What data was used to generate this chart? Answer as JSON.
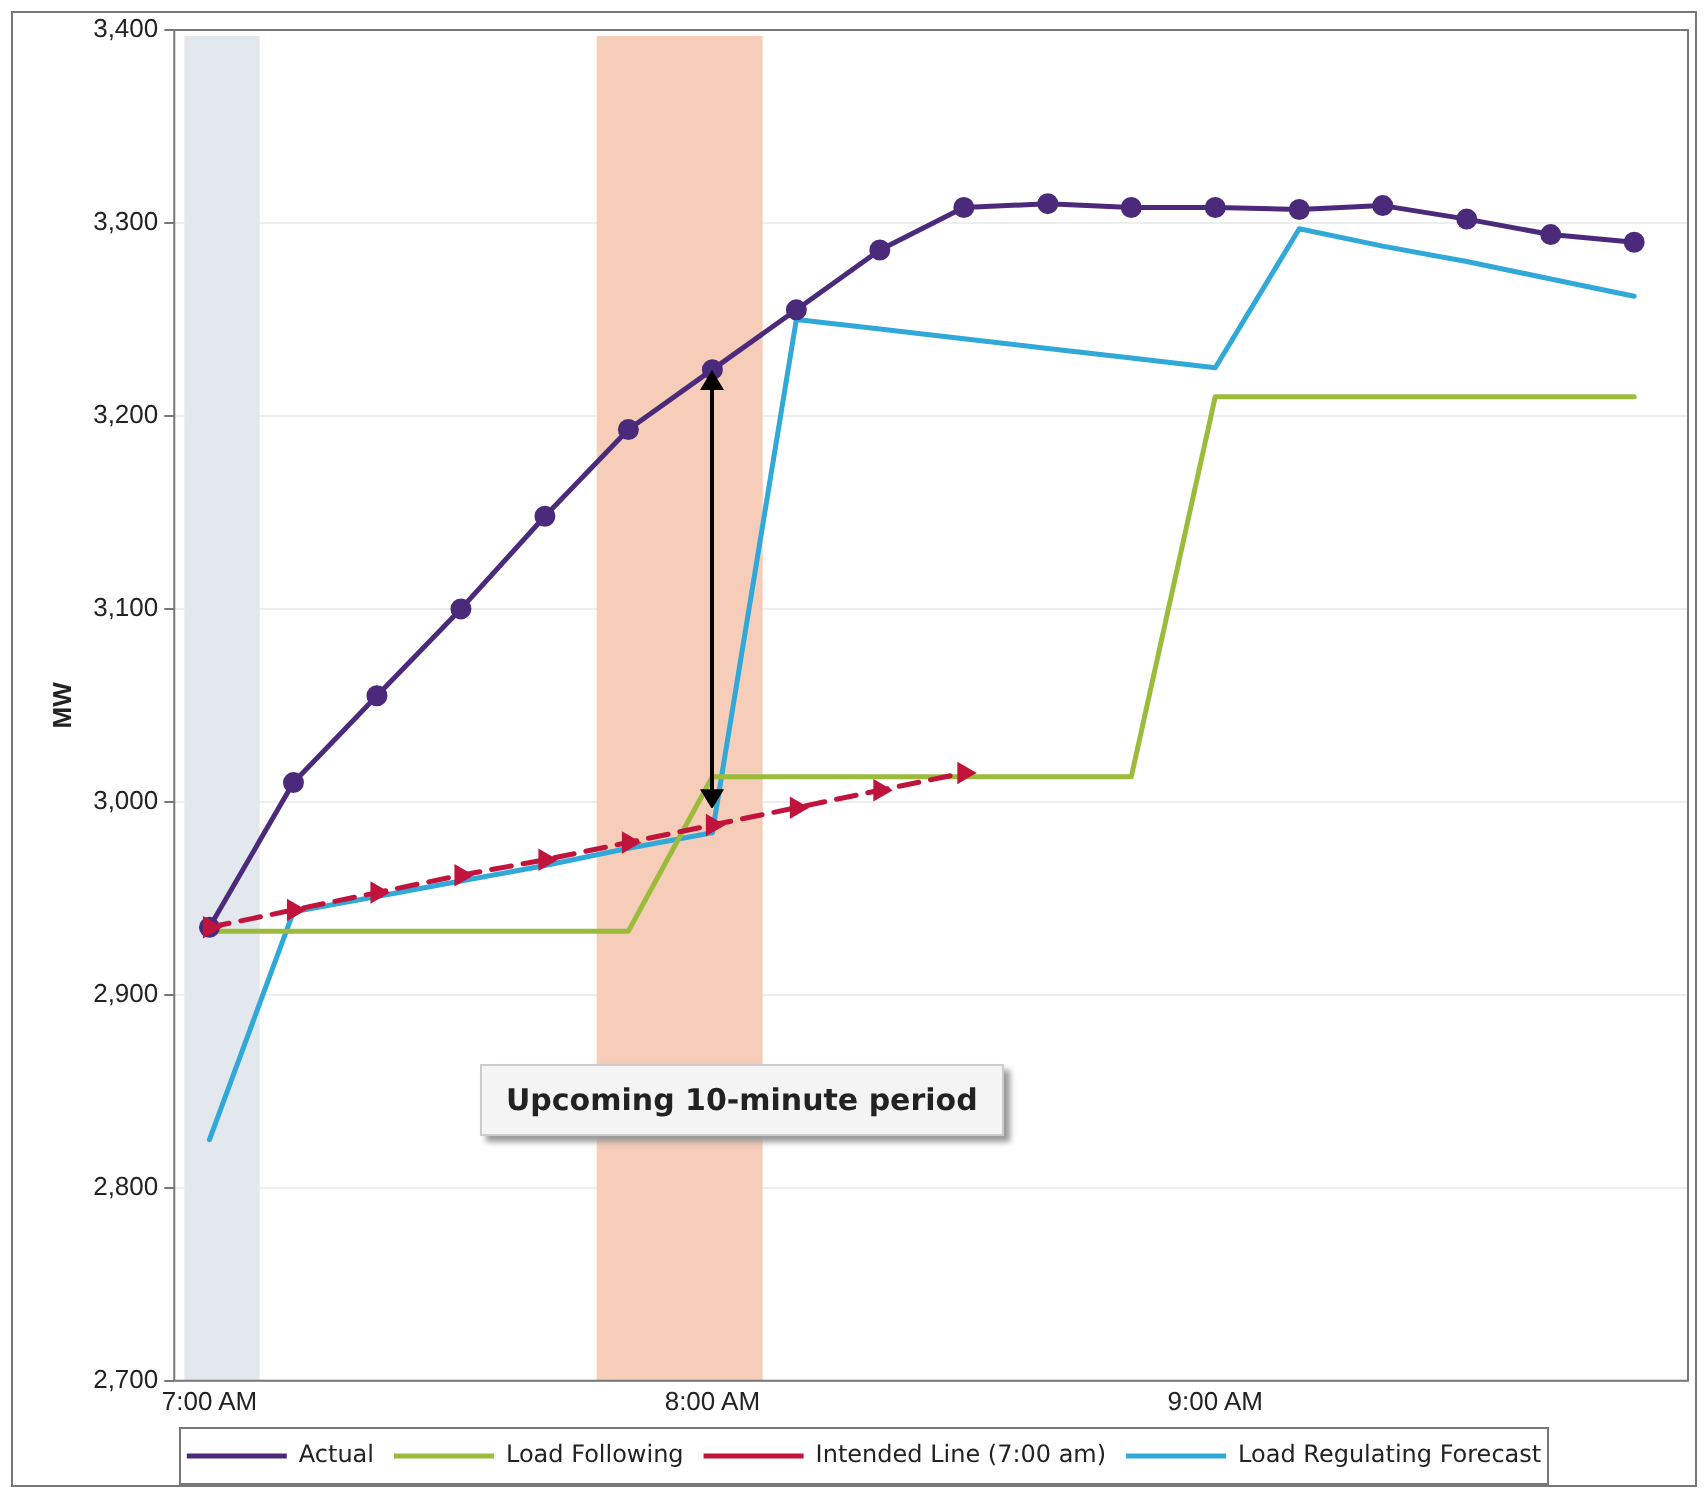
{
  "chart_data": {
    "type": "line",
    "ylabel": "MW",
    "x": [
      7,
      7.167,
      7.333,
      7.5,
      7.667,
      7.833,
      8,
      8.167,
      8.333,
      8.5,
      8.667,
      8.833,
      9,
      9.167,
      9.333,
      9.5,
      9.667,
      9.833
    ],
    "series": [
      {
        "name": "Actual",
        "color": "#4b2a7b",
        "marker": "circle",
        "line_style": "solid",
        "values": [
          2935,
          3010,
          3055,
          3100,
          3148,
          3193,
          3224,
          3255,
          3286,
          3308,
          3310,
          3308,
          3308,
          3307,
          3309,
          3302,
          3294,
          3290
        ]
      },
      {
        "name": "Load Following",
        "color": "#9bbb3b",
        "marker": "none",
        "line_style": "solid",
        "values": [
          2933,
          2933,
          2933,
          2933,
          2933,
          2933,
          3013,
          3013,
          3013,
          3013,
          3013,
          3013,
          3210,
          3210,
          3210,
          3210,
          3210,
          3210
        ]
      },
      {
        "name": "Intended Line (7:00 am)",
        "color": "#c0143c",
        "marker": "triangle",
        "line_style": "dashed",
        "values": [
          2935,
          2944,
          2953,
          2962,
          2970,
          2979,
          2988,
          2997,
          3006,
          3015,
          null,
          null,
          null,
          null,
          null,
          null,
          null,
          null
        ]
      },
      {
        "name": "Load Regulating Forecast",
        "color": "#30a8d8",
        "marker": "none",
        "line_style": "solid",
        "values": [
          2825,
          2943,
          2951,
          2959,
          2967,
          2976,
          2984,
          3250,
          3245,
          3240,
          3235,
          3230,
          3225,
          3297,
          3288,
          3280,
          3271,
          3262
        ]
      }
    ],
    "xlim": [
      6.93,
      9.94
    ],
    "xticks": [
      {
        "value": 7,
        "label": "7:00 AM"
      },
      {
        "value": 8,
        "label": "8:00 AM"
      },
      {
        "value": 9,
        "label": "9:00 AM"
      }
    ],
    "ylim": [
      2700,
      3400
    ],
    "yticks": [
      {
        "value": 2700,
        "label": "2,700"
      },
      {
        "value": 2800,
        "label": "2,800"
      },
      {
        "value": 2900,
        "label": "2,900"
      },
      {
        "value": 3000,
        "label": "3,000"
      },
      {
        "value": 3100,
        "label": "3,100"
      },
      {
        "value": 3200,
        "label": "3,200"
      },
      {
        "value": 3300,
        "label": "3,300"
      },
      {
        "value": 3400,
        "label": "3,400"
      }
    ],
    "bands": [
      {
        "axis": "x",
        "from": 6.95,
        "to": 7.1,
        "color": "#e3e7ee"
      },
      {
        "axis": "x",
        "from": 7.77,
        "to": 8.1,
        "color": "#f6cdb8"
      }
    ],
    "annotations": [
      "Upcoming 10-minute period"
    ],
    "grid": "y",
    "legend": "bottom"
  }
}
